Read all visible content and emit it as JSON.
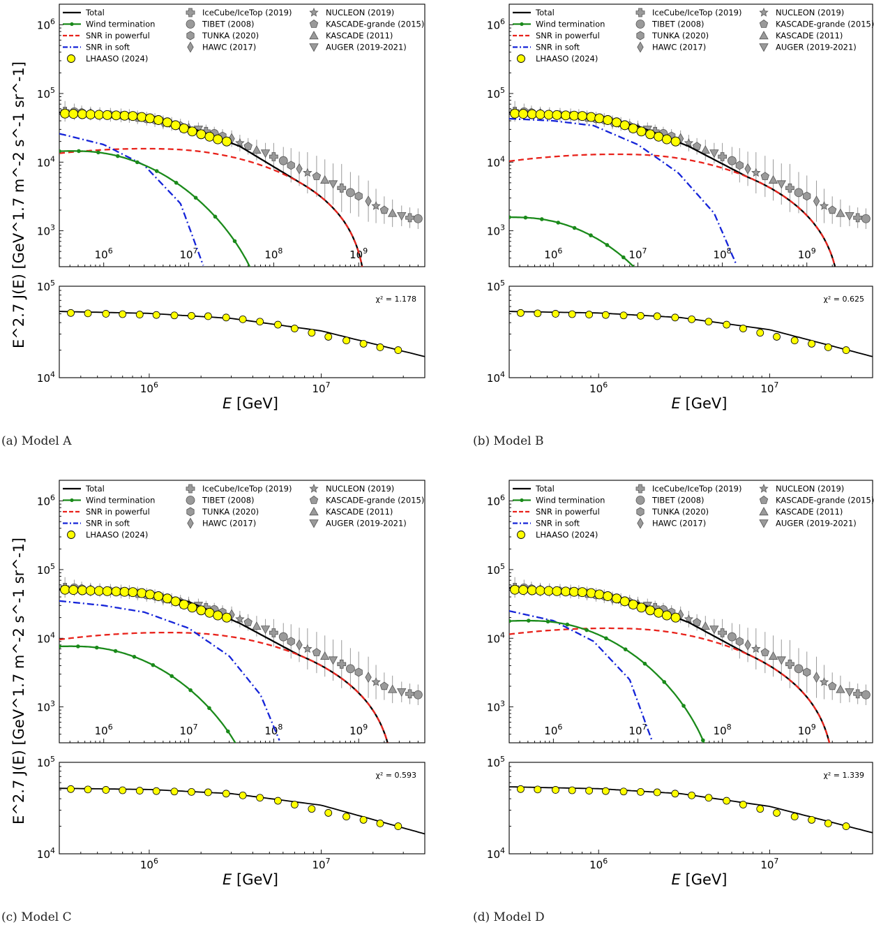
{
  "figure": {
    "ylabel": "E^2.7 J(E) [GeV^1.7 m^-2 s^-1 sr^-1]",
    "xlabel_symbol": "E",
    "xlabel_unit": "[GeV]",
    "legend_labels": {
      "total": "Total",
      "wind": "Wind termination",
      "snr_powerful": "SNR in powerful",
      "snr_soft": "SNR in soft",
      "lhaaso": "LHAASO (2024)",
      "icecube": "IceCube/IceTop (2019)",
      "tibet": "TIBET (2008)",
      "tunka": "TUNKA (2020)",
      "hawc": "HAWC (2017)",
      "nucleon": "NUCLEON (2019)",
      "kascade_grande": "KASCADE-grande (2015)",
      "kascade": "KASCADE (2011)",
      "auger": "AUGER (2019-2021)"
    },
    "colors": {
      "total": "#000000",
      "wind": "#1a8a1a",
      "snr_powerful": "#e8221b",
      "snr_soft": "#1524d8",
      "lhaaso": "#ffff00",
      "experiments": "#9a9a9a"
    }
  },
  "chart_data": [
    {
      "type": "line",
      "panel": "Model A",
      "caption": "(a) Model A",
      "xscale": "log",
      "yscale": "log",
      "top": {
        "xlim": [
          300000.0,
          6000000000.0
        ],
        "ylim": [
          300,
          2000000.0
        ],
        "x_ticks": [
          {
            "exp": 6,
            "label": "10"
          },
          {
            "exp": 7,
            "label": "10"
          },
          {
            "exp": 8,
            "label": "10"
          },
          {
            "exp": 9,
            "label": "10"
          }
        ],
        "y_ticks": [
          {
            "exp": 3,
            "label": "10"
          },
          {
            "exp": 4,
            "label": "10"
          },
          {
            "exp": 5,
            "label": "10"
          },
          {
            "exp": 6,
            "label": "10"
          }
        ],
        "wind": {
          "peak_E": 600000.0,
          "peak_val": 16000,
          "fall": 0.3,
          "cut_E": 100000000.0
        },
        "snr_powerful": {
          "peak_E": 6000000.0,
          "peak_val": 17000,
          "fall": 0.12,
          "cut_E": 1300000000.0
        },
        "snr_soft": {
          "E": [
            300000.0,
            1000000.0,
            3000000.0,
            8000000.0,
            15000000.0
          ],
          "V": [
            26000,
            18000,
            9000,
            2500,
            300
          ]
        }
      },
      "bottom": {
        "xlim": [
          300000.0,
          40000000.0
        ],
        "ylim": [
          10000,
          100000
        ],
        "chi2": "χ² = 1.178",
        "fit_E": [
          300000.0,
          1000000.0,
          3000000.0,
          10000000.0,
          40000000.0
        ],
        "fit_V": [
          53000,
          50500,
          44500,
          32500,
          17000
        ]
      }
    },
    {
      "type": "line",
      "panel": "Model B",
      "caption": "(b) Model B",
      "xscale": "log",
      "yscale": "log",
      "top": {
        "xlim": [
          300000.0,
          6000000000.0
        ],
        "ylim": [
          300,
          2000000.0
        ],
        "x_ticks": [
          {
            "exp": 6,
            "label": "10"
          },
          {
            "exp": 7,
            "label": "10"
          },
          {
            "exp": 8,
            "label": "10"
          },
          {
            "exp": 9,
            "label": "10"
          }
        ],
        "y_ticks": [
          {
            "exp": 3,
            "label": "10"
          },
          {
            "exp": 4,
            "label": "10"
          },
          {
            "exp": 5,
            "label": "10"
          },
          {
            "exp": 6,
            "label": "10"
          }
        ],
        "wind": {
          "peak_E": 500000.0,
          "peak_val": 1800,
          "fall": 0.3,
          "cut_E": 40000000.0
        },
        "snr_powerful": {
          "peak_E": 10000000.0,
          "peak_val": 14000,
          "fall": 0.12,
          "cut_E": 2700000000.0
        },
        "snr_soft": {
          "E": [
            300000.0,
            1000000.0,
            3000000.0,
            10000000.0,
            30000000.0,
            80000000.0,
            150000000.0
          ],
          "V": [
            43000,
            40000,
            34000,
            18000,
            7000,
            1800,
            300
          ]
        }
      },
      "bottom": {
        "xlim": [
          300000.0,
          40000000.0
        ],
        "ylim": [
          10000,
          100000
        ],
        "chi2": "χ² = 0.625",
        "fit_E": [
          300000.0,
          1000000.0,
          3000000.0,
          10000000.0,
          40000000.0
        ],
        "fit_V": [
          53000,
          51000,
          45500,
          33500,
          17000
        ]
      }
    },
    {
      "type": "line",
      "panel": "Model C",
      "caption": "(c) Model C",
      "xscale": "log",
      "yscale": "log",
      "top": {
        "xlim": [
          300000.0,
          6000000000.0
        ],
        "ylim": [
          300,
          2000000.0
        ],
        "x_ticks": [
          {
            "exp": 6,
            "label": "10"
          },
          {
            "exp": 7,
            "label": "10"
          },
          {
            "exp": 8,
            "label": "10"
          },
          {
            "exp": 9,
            "label": "10"
          }
        ],
        "y_ticks": [
          {
            "exp": 3,
            "label": "10"
          },
          {
            "exp": 4,
            "label": "10"
          },
          {
            "exp": 5,
            "label": "10"
          },
          {
            "exp": 6,
            "label": "10"
          }
        ],
        "wind": {
          "peak_E": 600000.0,
          "peak_val": 8500,
          "fall": 0.3,
          "cut_E": 80000000.0
        },
        "snr_powerful": {
          "peak_E": 10000000.0,
          "peak_val": 13000,
          "fall": 0.12,
          "cut_E": 2800000000.0
        },
        "snr_soft": {
          "E": [
            300000.0,
            1000000.0,
            3000000.0,
            10000000.0,
            30000000.0,
            70000000.0,
            120000000.0
          ],
          "V": [
            35000,
            30000,
            24000,
            14000,
            5500,
            1500,
            300
          ]
        }
      },
      "bottom": {
        "xlim": [
          300000.0,
          40000000.0
        ],
        "ylim": [
          10000,
          100000
        ],
        "chi2": "χ² = 0.593",
        "fit_E": [
          300000.0,
          1000000.0,
          3000000.0,
          10000000.0,
          40000000.0
        ],
        "fit_V": [
          52000,
          50500,
          45500,
          34000,
          16500
        ]
      }
    },
    {
      "type": "line",
      "panel": "Model D",
      "caption": "(d) Model D",
      "xscale": "log",
      "yscale": "log",
      "top": {
        "xlim": [
          300000.0,
          6000000000.0
        ],
        "ylim": [
          300,
          2000000.0
        ],
        "x_ticks": [
          {
            "exp": 6,
            "label": "10"
          },
          {
            "exp": 7,
            "label": "10"
          },
          {
            "exp": 8,
            "label": "10"
          },
          {
            "exp": 9,
            "label": "10"
          }
        ],
        "y_ticks": [
          {
            "exp": 3,
            "label": "10"
          },
          {
            "exp": 4,
            "label": "10"
          },
          {
            "exp": 5,
            "label": "10"
          },
          {
            "exp": 6,
            "label": "10"
          }
        ],
        "wind": {
          "peak_E": 700000.0,
          "peak_val": 20000,
          "fall": 0.3,
          "cut_E": 100000000.0
        },
        "snr_powerful": {
          "peak_E": 8000000.0,
          "peak_val": 15000,
          "fall": 0.12,
          "cut_E": 2300000000.0
        },
        "snr_soft": {
          "E": [
            300000.0,
            1000000.0,
            3000000.0,
            8000000.0,
            15000000.0
          ],
          "V": [
            25000,
            18000,
            9000,
            2500,
            300
          ]
        }
      },
      "bottom": {
        "xlim": [
          300000.0,
          40000000.0
        ],
        "ylim": [
          10000,
          100000
        ],
        "chi2": "χ² = 1.339",
        "fit_E": [
          300000.0,
          1000000.0,
          3000000.0,
          10000000.0,
          40000000.0
        ],
        "fit_V": [
          54000,
          51500,
          45500,
          33000,
          17000
        ]
      }
    }
  ],
  "shared_data": {
    "lhaaso": {
      "E": [
        350000.0,
        440000.0,
        560000.0,
        700000.0,
        880000.0,
        1100000.0,
        1400000.0,
        1760000.0,
        2200000.0,
        2800000.0,
        3500000.0,
        4400000.0,
        5600000.0,
        7000000.0,
        8800000.0,
        11000000.0,
        14000000.0,
        17600000.0,
        22000000.0,
        28000000.0
      ],
      "V": [
        51000,
        50500,
        50000,
        49500,
        49000,
        48500,
        48000,
        47500,
        47000,
        45500,
        43500,
        41000,
        38000,
        34500,
        31000,
        28000,
        25500,
        23500,
        21500,
        20000
      ]
    },
    "experiment_markers": [
      {
        "E": 350000.0,
        "V": 55000,
        "err": 0.15
      },
      {
        "E": 450000.0,
        "V": 54000,
        "err": 0.12
      },
      {
        "E": 550000.0,
        "V": 53000,
        "err": 0.1
      },
      {
        "E": 700000.0,
        "V": 51000,
        "err": 0.1
      },
      {
        "E": 900000.0,
        "V": 50000,
        "err": 0.1
      },
      {
        "E": 1200000.0,
        "V": 49000,
        "err": 0.1
      },
      {
        "E": 1600000.0,
        "V": 48000,
        "err": 0.1
      },
      {
        "E": 2000000.0,
        "V": 47000,
        "err": 0.1
      },
      {
        "E": 2500000.0,
        "V": 45000,
        "err": 0.1
      },
      {
        "E": 3200000.0,
        "V": 43000,
        "err": 0.1
      },
      {
        "E": 4000000.0,
        "V": 41000,
        "err": 0.1
      },
      {
        "E": 5000000.0,
        "V": 38000,
        "err": 0.1
      },
      {
        "E": 6300000.0,
        "V": 36000,
        "err": 0.1
      },
      {
        "E": 8000000.0,
        "V": 34000,
        "err": 0.1
      },
      {
        "E": 10000000.0,
        "V": 32000,
        "err": 0.1
      },
      {
        "E": 13000000.0,
        "V": 30000,
        "err": 0.1
      },
      {
        "E": 16000000.0,
        "V": 28000,
        "err": 0.1
      },
      {
        "E": 20000000.0,
        "V": 26000,
        "err": 0.1
      },
      {
        "E": 25000000.0,
        "V": 24000,
        "err": 0.1
      },
      {
        "E": 32000000.0,
        "V": 22000,
        "err": 0.12
      },
      {
        "E": 40000000.0,
        "V": 19000,
        "err": 0.12
      },
      {
        "E": 50000000.0,
        "V": 17000,
        "err": 0.12
      },
      {
        "E": 63000000.0,
        "V": 15000,
        "err": 0.15
      },
      {
        "E": 80000000.0,
        "V": 13500,
        "err": 0.15
      },
      {
        "E": 100000000.0,
        "V": 12000,
        "err": 0.2
      },
      {
        "E": 130000000.0,
        "V": 10500,
        "err": 0.2
      },
      {
        "E": 160000000.0,
        "V": 9000,
        "err": 0.25
      },
      {
        "E": 200000000.0,
        "V": 8000,
        "err": 0.25
      },
      {
        "E": 250000000.0,
        "V": 7000,
        "err": 0.3
      },
      {
        "E": 320000000.0,
        "V": 6200,
        "err": 0.3
      },
      {
        "E": 400000000.0,
        "V": 5500,
        "err": 0.3
      },
      {
        "E": 500000000.0,
        "V": 4800,
        "err": 0.3
      },
      {
        "E": 630000000.0,
        "V": 4200,
        "err": 0.35
      },
      {
        "E": 800000000.0,
        "V": 3600,
        "err": 0.3
      },
      {
        "E": 1000000000.0,
        "V": 3200,
        "err": 0.3
      },
      {
        "E": 1300000000.0,
        "V": 2700,
        "err": 0.3
      },
      {
        "E": 1600000000.0,
        "V": 2300,
        "err": 0.25
      },
      {
        "E": 2000000000.0,
        "V": 2000,
        "err": 0.2
      },
      {
        "E": 2500000000.0,
        "V": 1800,
        "err": 0.2
      },
      {
        "E": 3200000000.0,
        "V": 1650,
        "err": 0.15
      },
      {
        "E": 4000000000.0,
        "V": 1550,
        "err": 0.15
      },
      {
        "E": 5000000000.0,
        "V": 1500,
        "err": 0.15
      }
    ]
  }
}
